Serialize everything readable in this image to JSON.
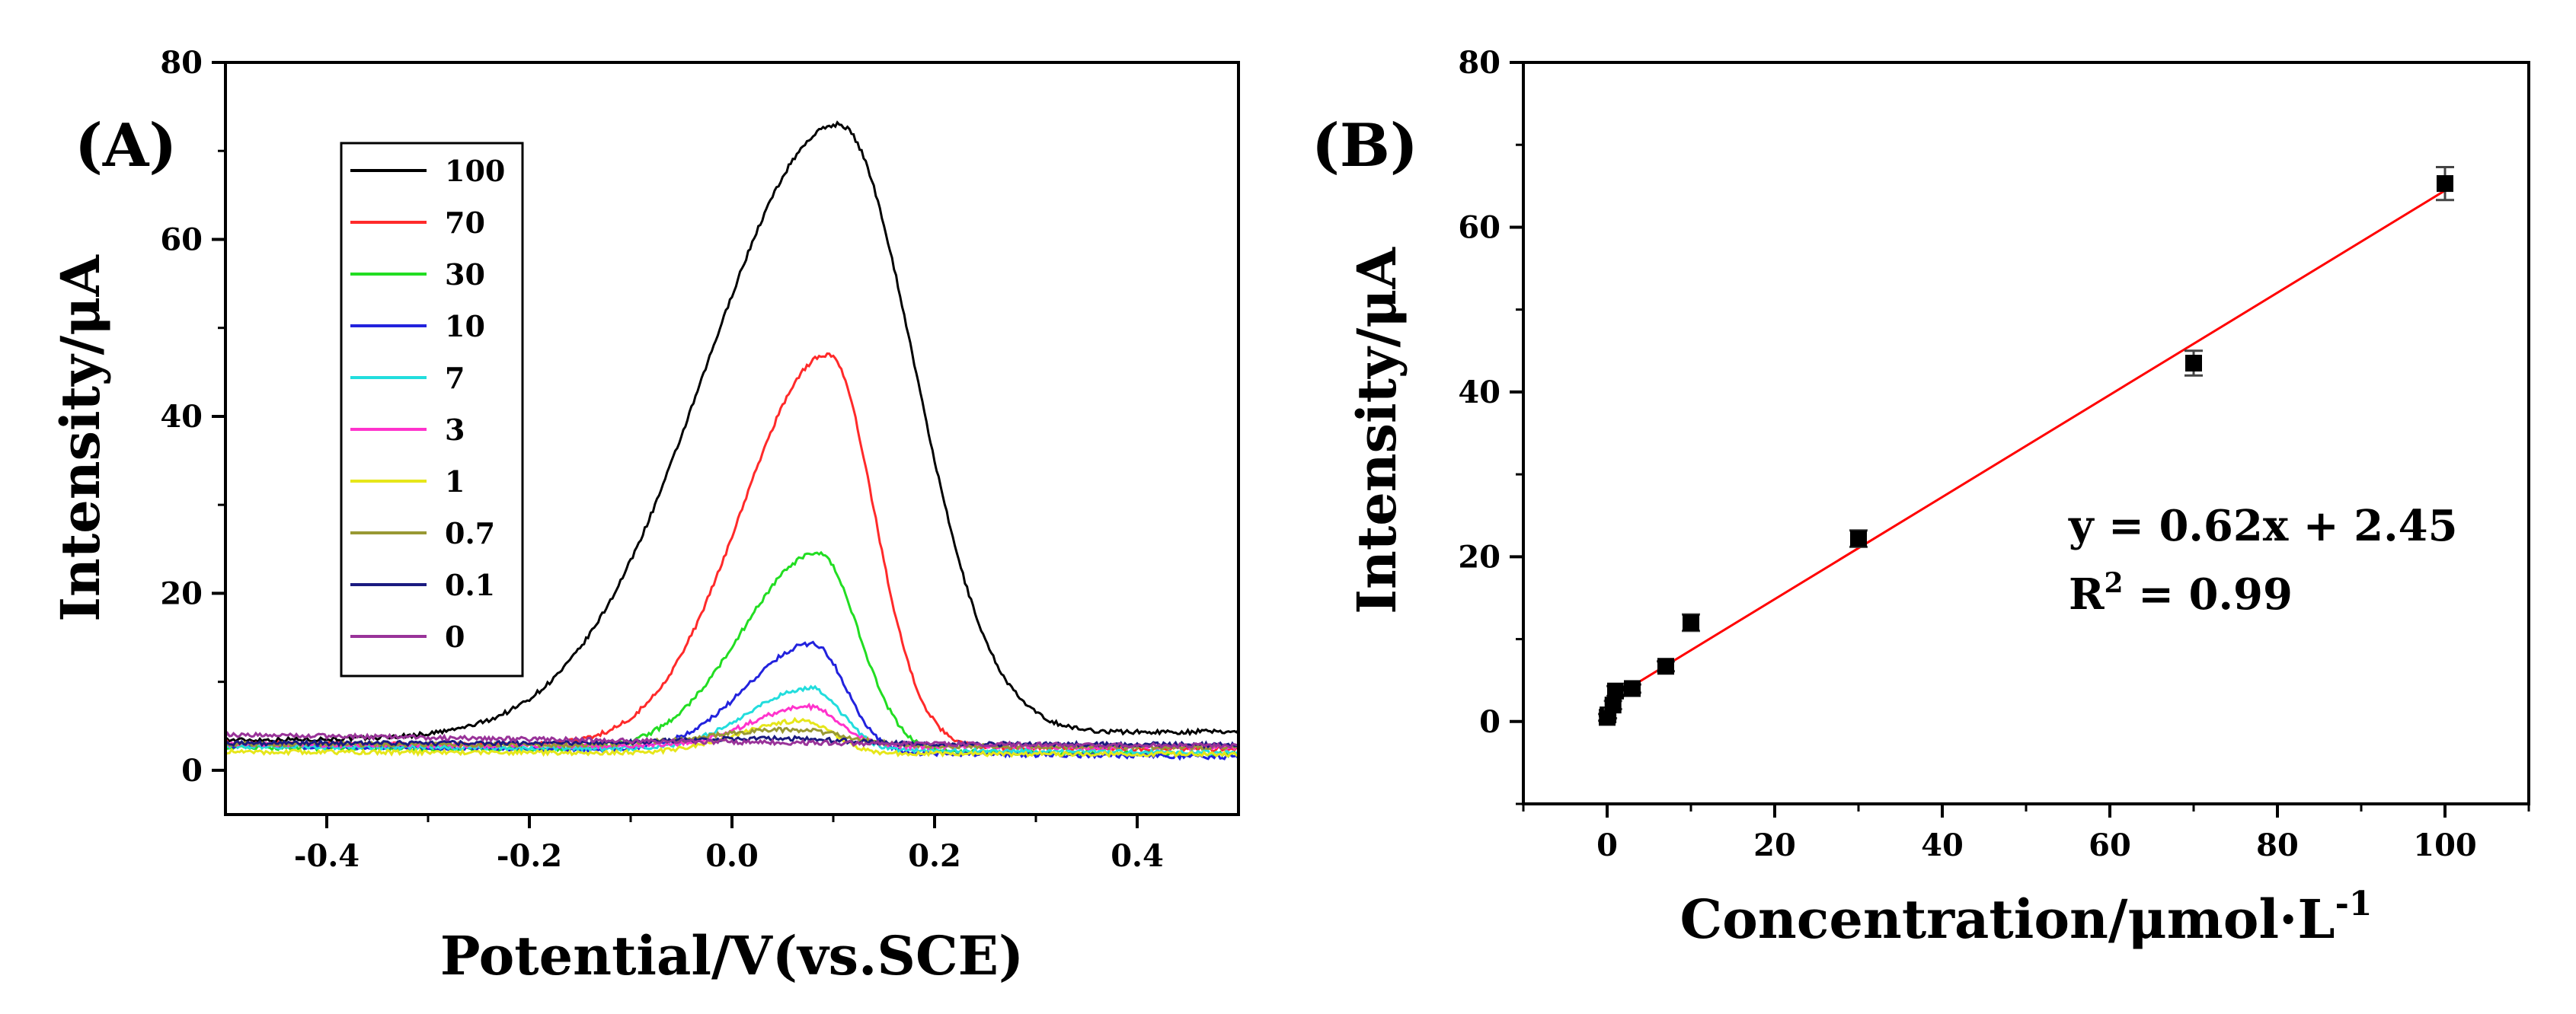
{
  "chart_data": [
    {
      "panel": "(A)",
      "type": "line",
      "xlabel": "Potential/V(vs.SCE)",
      "ylabel": "Intensity/μA",
      "xlim": [
        -0.5,
        0.5
      ],
      "ylim": [
        -5,
        80
      ],
      "xticks": [
        -0.4,
        -0.2,
        0.0,
        0.2,
        0.4
      ],
      "xtick_labels": [
        "-0.4",
        "-0.2",
        "0.0",
        "0.2",
        "0.4"
      ],
      "yticks": [
        0,
        20,
        40,
        60,
        80
      ],
      "ytick_labels": [
        "0",
        "20",
        "40",
        "60",
        "80"
      ],
      "legend_position": "top-left",
      "series": [
        {
          "name": "100",
          "color": "#000000",
          "peak_x": 0.105,
          "peak_y": 73.0,
          "baseline_left": 3.4,
          "baseline_right": 4.4,
          "width_left": 0.13,
          "width_right": 0.075
        },
        {
          "name": "70",
          "color": "#ff2a2a",
          "peak_x": 0.095,
          "peak_y": 47.0,
          "baseline_left": 3.0,
          "baseline_right": 2.4,
          "width_left": 0.085,
          "width_right": 0.045
        },
        {
          "name": "30",
          "color": "#22dd22",
          "peak_x": 0.085,
          "peak_y": 24.5,
          "baseline_left": 2.6,
          "baseline_right": 1.8,
          "width_left": 0.075,
          "width_right": 0.04
        },
        {
          "name": "10",
          "color": "#2222dd",
          "peak_x": 0.08,
          "peak_y": 14.3,
          "baseline_left": 2.8,
          "baseline_right": 1.5,
          "width_left": 0.065,
          "width_right": 0.032
        },
        {
          "name": "7",
          "color": "#22dddd",
          "peak_x": 0.078,
          "peak_y": 9.3,
          "baseline_left": 2.7,
          "baseline_right": 2.0,
          "width_left": 0.06,
          "width_right": 0.03
        },
        {
          "name": "3",
          "color": "#ff33cc",
          "peak_x": 0.075,
          "peak_y": 7.2,
          "baseline_left": 2.9,
          "baseline_right": 2.6,
          "width_left": 0.055,
          "width_right": 0.03
        },
        {
          "name": "1",
          "color": "#e6e61a",
          "peak_x": 0.07,
          "peak_y": 5.6,
          "baseline_left": 2.1,
          "baseline_right": 1.8,
          "width_left": 0.06,
          "width_right": 0.03
        },
        {
          "name": "0.7",
          "color": "#999933",
          "peak_x": 0.06,
          "peak_y": 4.6,
          "baseline_left": 3.0,
          "baseline_right": 2.6,
          "width_left": 0.08,
          "width_right": 0.05
        },
        {
          "name": "0.1",
          "color": "#1a1a80",
          "peak_x": 0.05,
          "peak_y": 3.6,
          "baseline_left": 3.1,
          "baseline_right": 2.9,
          "width_left": 0.1,
          "width_right": 0.06
        },
        {
          "name": "0",
          "color": "#993399",
          "peak_x": 0.0,
          "peak_y": 3.2,
          "baseline_left": 4.1,
          "baseline_right": 2.8,
          "width_left": 0.3,
          "width_right": 0.3
        }
      ]
    },
    {
      "panel": "(B)",
      "type": "scatter",
      "xlabel": "Concentration/μmol·L",
      "xlabel_superscript": "-1",
      "ylabel": "Intensity/μA",
      "xlim": [
        -10,
        110
      ],
      "ylim": [
        -10,
        80
      ],
      "xticks": [
        0,
        20,
        40,
        60,
        80,
        100
      ],
      "xtick_labels": [
        "0",
        "20",
        "40",
        "60",
        "80",
        "100"
      ],
      "yticks": [
        0,
        20,
        40,
        60,
        80
      ],
      "ytick_labels": [
        "0",
        "20",
        "40",
        "60",
        "80"
      ],
      "points": {
        "x": [
          0,
          0.1,
          0.7,
          1,
          3,
          7,
          10,
          30,
          70,
          100
        ],
        "y": [
          0.5,
          0.8,
          2.0,
          3.7,
          4.0,
          6.7,
          12.0,
          22.2,
          43.5,
          65.3
        ],
        "err": [
          0.4,
          0.4,
          0.5,
          0.6,
          0.5,
          0.6,
          1.0,
          1.0,
          1.5,
          2.0
        ]
      },
      "fit": {
        "slope": 0.62,
        "intercept": 2.45,
        "x_range": [
          0,
          100
        ],
        "color": "#ff0000"
      },
      "equation_text": "y = 0.62x + 2.45",
      "r2_prefix": "R",
      "r2_sup": "2",
      "r2_value": " = 0.99"
    }
  ]
}
